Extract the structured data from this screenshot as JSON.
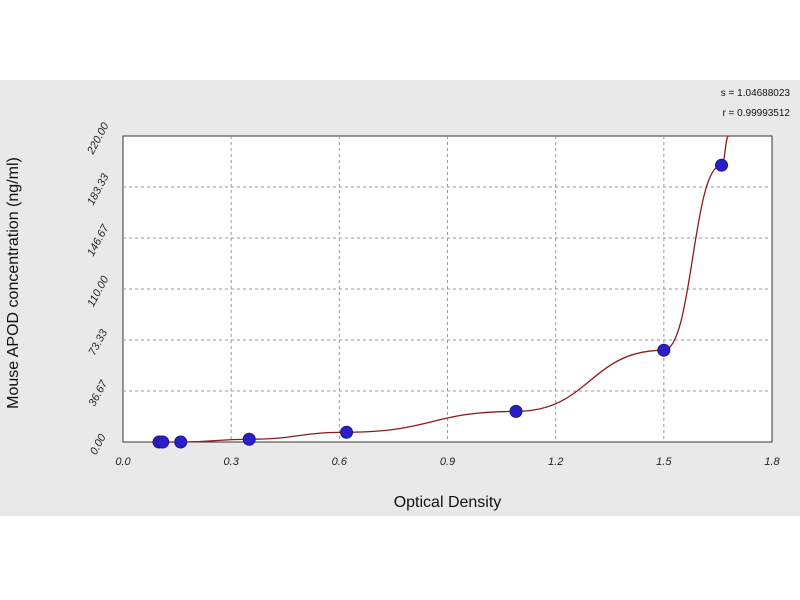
{
  "chart_data": {
    "type": "scatter",
    "xlabel": "Optical Density",
    "ylabel": "Mouse APOD concentration (ng/ml)",
    "xlim": [
      0.0,
      1.8
    ],
    "ylim": [
      0.0,
      220.0
    ],
    "x_ticks": [
      "0.0",
      "0.3",
      "0.6",
      "0.9",
      "1.2",
      "1.5",
      "1.8"
    ],
    "y_ticks": [
      "0.00",
      "36.67",
      "73.33",
      "110.00",
      "146.67",
      "183.33",
      "220.00"
    ],
    "grid": true,
    "annotations": [
      "s = 1.04688023",
      "r = 0.99993512"
    ],
    "series": [
      {
        "values": [
          {
            "x": 0.1,
            "y": 0.0
          },
          {
            "x": 0.11,
            "y": 0.0
          },
          {
            "x": 0.16,
            "y": 0.0
          },
          {
            "x": 0.35,
            "y": 2.0
          },
          {
            "x": 0.62,
            "y": 7.0
          },
          {
            "x": 1.09,
            "y": 22.0
          },
          {
            "x": 1.5,
            "y": 66.0
          },
          {
            "x": 1.66,
            "y": 199.0
          }
        ]
      }
    ],
    "curve_color": "#8b1a1a",
    "point_color": "#2a1fc7"
  }
}
